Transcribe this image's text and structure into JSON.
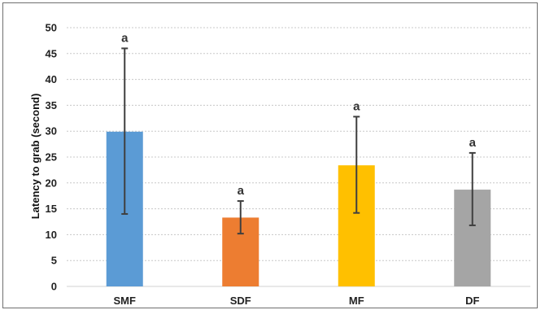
{
  "chart_data": {
    "type": "bar",
    "categories": [
      "SMF",
      "SDF",
      "MF",
      "DF"
    ],
    "values": [
      29.9,
      13.3,
      23.4,
      18.7
    ],
    "error_low": [
      14.0,
      10.2,
      14.2,
      11.8
    ],
    "error_high": [
      46.0,
      16.5,
      32.8,
      25.8
    ],
    "significance_labels": [
      "a",
      "a",
      "a",
      "a"
    ],
    "colors": [
      "#5b9bd5",
      "#ed7d31",
      "#ffc000",
      "#a5a5a5"
    ],
    "title": "",
    "xlabel": "",
    "ylabel": "Latency to grab (second)",
    "ylim": [
      0,
      50
    ],
    "yticks": [
      0,
      5,
      10,
      15,
      20,
      25,
      30,
      35,
      40,
      45,
      50
    ],
    "grid": true,
    "legend": "none"
  }
}
